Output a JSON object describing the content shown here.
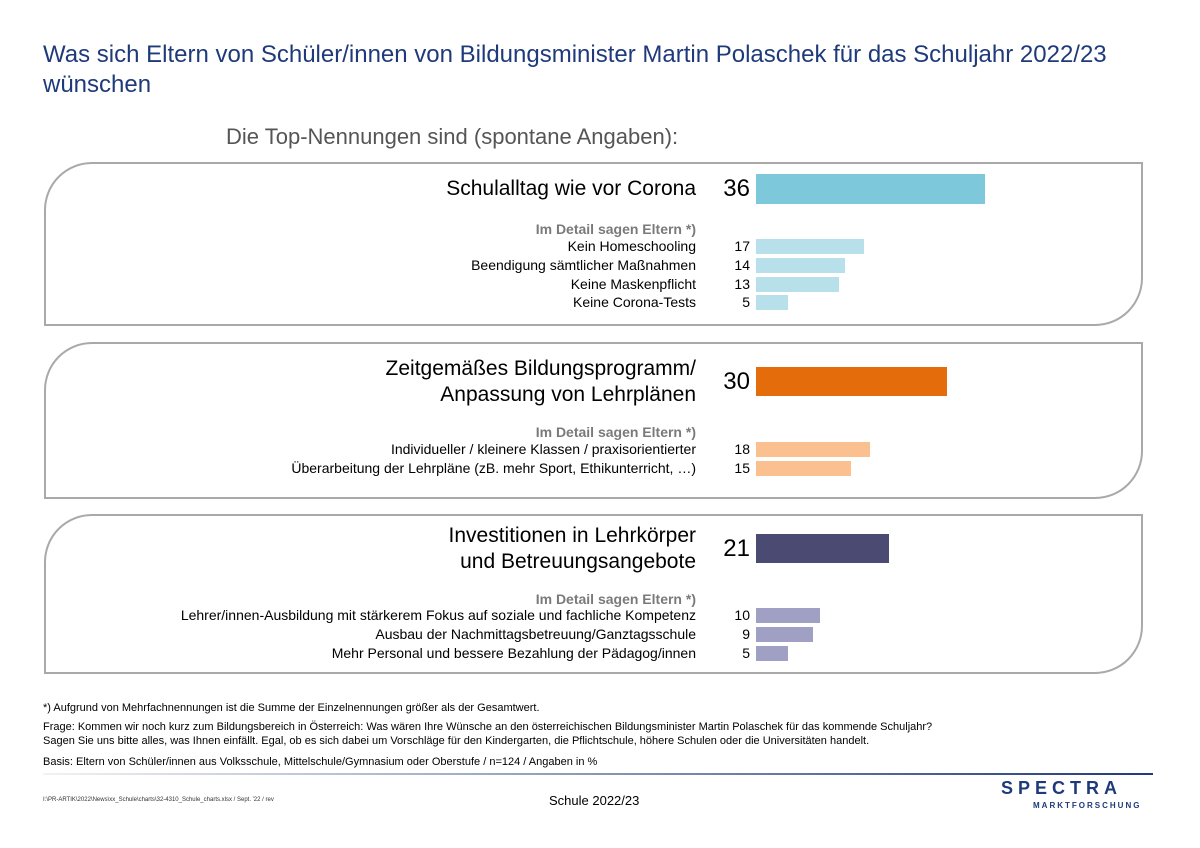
{
  "title": "Was sich Eltern von Schüler/innen von Bildungsminister Martin Polaschek für das Schuljahr 2022/23 wünschen",
  "subtitle": "Die Top-Nennungen sind (spontane Angaben):",
  "detail_heading": "Im Detail sagen Eltern *)",
  "chart_data": {
    "type": "bar",
    "orientation": "horizontal",
    "unit": "%",
    "xlim": [
      0,
      40
    ],
    "grid": false,
    "groups": [
      {
        "label": "Schulalltag wie vor Corona",
        "value": 36,
        "color": "#7ec8dc",
        "detail_color": "#b8e0ea",
        "details": [
          {
            "label": "Kein Homeschooling",
            "value": 17
          },
          {
            "label": "Beendigung sämtlicher Maßnahmen",
            "value": 14
          },
          {
            "label": "Keine Maskenpflicht",
            "value": 13
          },
          {
            "label": "Keine Corona-Tests",
            "value": 5
          }
        ]
      },
      {
        "label": "Zeitgemäßes Bildungsprogramm/\nAnpassung von Lehrplänen",
        "value": 30,
        "color": "#e46c0a",
        "detail_color": "#fac090",
        "details": [
          {
            "label": "Individueller / kleinere Klassen / praxisorientierter",
            "value": 18
          },
          {
            "label": "Überarbeitung der Lehrpläne (zB. mehr Sport, Ethikunterricht, …)",
            "value": 15
          }
        ]
      },
      {
        "label": "Investitionen in Lehrkörper\nund Betreuungsangebote",
        "value": 21,
        "color": "#4a4a72",
        "detail_color": "#a09fc4",
        "details": [
          {
            "label": "Lehrer/innen-Ausbildung mit stärkerem Fokus auf soziale und fachliche Kompetenz",
            "value": 10
          },
          {
            "label": "Ausbau der Nachmittagsbetreuung/Ganztagsschule",
            "value": 9
          },
          {
            "label": "Mehr Personal und bessere Bezahlung der Pädagog/innen",
            "value": 5
          }
        ]
      }
    ]
  },
  "notes": {
    "asterisk": "*) Aufgrund von Mehrfachnennungen ist die Summe der Einzelnennungen größer als der Gesamtwert.",
    "question_line1": "Frage: Kommen wir noch kurz zum Bildungsbereich in Österreich: Was wären Ihre Wünsche an den österreichischen Bildungsminister Martin Polaschek für das kommende Schuljahr?",
    "question_line2": "Sagen Sie uns bitte alles, was Ihnen einfällt. Egal, ob es sich dabei um Vorschläge für den Kindergarten, die Pflichtschule, höhere Schulen oder die Universitäten handelt.",
    "basis": "Basis: Eltern von Schüler/innen aus Volksschule, Mittelschule/Gymnasium oder Oberstufe / n=124 / Angaben in %"
  },
  "footer": {
    "path": "I:\\PR-ARTIK\\2022\\News\\xx_Schule\\charts\\32-4310_Schule_charts.xlsx / Sept. '22 / rev",
    "center": "Schule 2022/23",
    "logo_main": "SPECTRA",
    "logo_sub": "MARKTFORSCHUNG"
  }
}
